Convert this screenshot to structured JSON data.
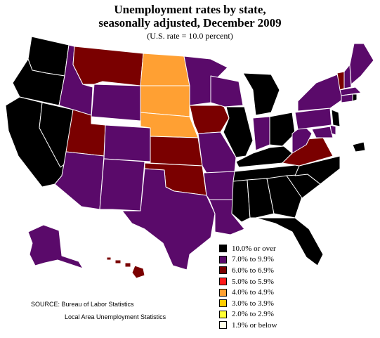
{
  "title_line1": "Unemployment rates by state,",
  "title_line2": "seasonally adjusted, December 2009",
  "subtitle": "(U.S. rate = 10.0 percent)",
  "legend": [
    {
      "label": "10.0% or over",
      "color": "#000000"
    },
    {
      "label": "7.0% to 9.9%",
      "color": "#5a0a6a"
    },
    {
      "label": "6.0% to 6.9%",
      "color": "#7a0000"
    },
    {
      "label": "5.0% to 5.9%",
      "color": "#ff1a1a"
    },
    {
      "label": "4.0% to 4.9%",
      "color": "#ffa033"
    },
    {
      "label": "3.0% to 3.9%",
      "color": "#ffcc00"
    },
    {
      "label": "2.0% to 2.9%",
      "color": "#ffff33"
    },
    {
      "label": "1.9% or below",
      "color": "#ffffe8"
    }
  ],
  "source_line1": "SOURCE:  Bureau of Labor Statistics",
  "source_line2": "Local Area Unemployment Statistics",
  "colors": {
    "black": "#000000",
    "purple": "#5a0a6a",
    "darkred": "#7a0000",
    "orange": "#ffa033"
  }
}
